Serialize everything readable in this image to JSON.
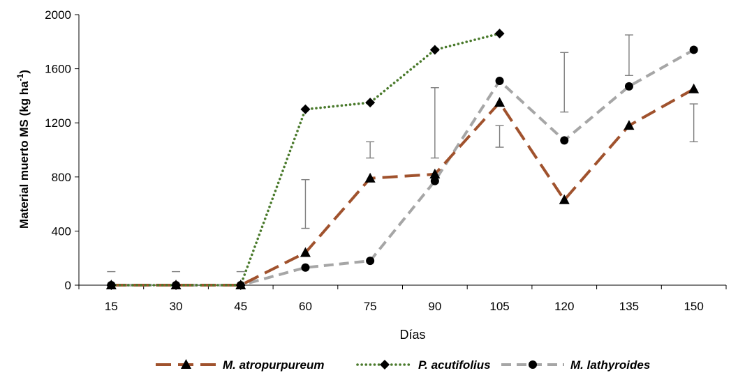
{
  "chart_data": {
    "type": "line",
    "title": "",
    "xlabel": "Días",
    "ylabel_main": "Material muerto MS (kg ha",
    "ylabel_sup": "-1",
    "ylabel_close": ")",
    "x": [
      15,
      30,
      45,
      60,
      75,
      90,
      105,
      120,
      135,
      150
    ],
    "x_tick_labels": [
      "15",
      "30",
      "45",
      "60",
      "75",
      "90",
      "105",
      "120",
      "135",
      "150"
    ],
    "y_tick_labels": [
      "0",
      "400",
      "800",
      "1200",
      "1600",
      "2000"
    ],
    "y_ticks": [
      0,
      400,
      800,
      1200,
      1600,
      2000
    ],
    "ylim": [
      0,
      2000
    ],
    "grid": false,
    "legend_position": "bottom",
    "series": [
      {
        "name": "M. atropurpureum",
        "color": "#a0522d",
        "line_style": "long-dash",
        "marker": "triangle",
        "values": [
          0,
          0,
          0,
          240,
          790,
          820,
          1350,
          630,
          1180,
          1450
        ]
      },
      {
        "name": "P. acutifolius",
        "color": "#4a7a2c",
        "line_style": "dotted",
        "marker": "diamond",
        "values": [
          0,
          0,
          0,
          1300,
          1350,
          1740,
          1860,
          null,
          null,
          null
        ]
      },
      {
        "name": "M. lathyroides",
        "color": "#a6a6a6",
        "line_style": "dash",
        "marker": "circle",
        "values": [
          0,
          0,
          0,
          130,
          180,
          770,
          1510,
          1070,
          1470,
          1740
        ]
      }
    ],
    "error_bars": [
      {
        "x": 15,
        "low": 100,
        "high": 100
      },
      {
        "x": 30,
        "low": 100,
        "high": 100
      },
      {
        "x": 45,
        "low": 100,
        "high": 100
      },
      {
        "x": 60,
        "low": 420,
        "high": 780
      },
      {
        "x": 75,
        "low": 940,
        "high": 1060
      },
      {
        "x": 90,
        "low": 940,
        "high": 1460
      },
      {
        "x": 105,
        "low": 1020,
        "high": 1180
      },
      {
        "x": 120,
        "low": 1280,
        "high": 1720
      },
      {
        "x": 135,
        "low": 1550,
        "high": 1850
      },
      {
        "x": 150,
        "low": 1060,
        "high": 1340
      }
    ]
  }
}
